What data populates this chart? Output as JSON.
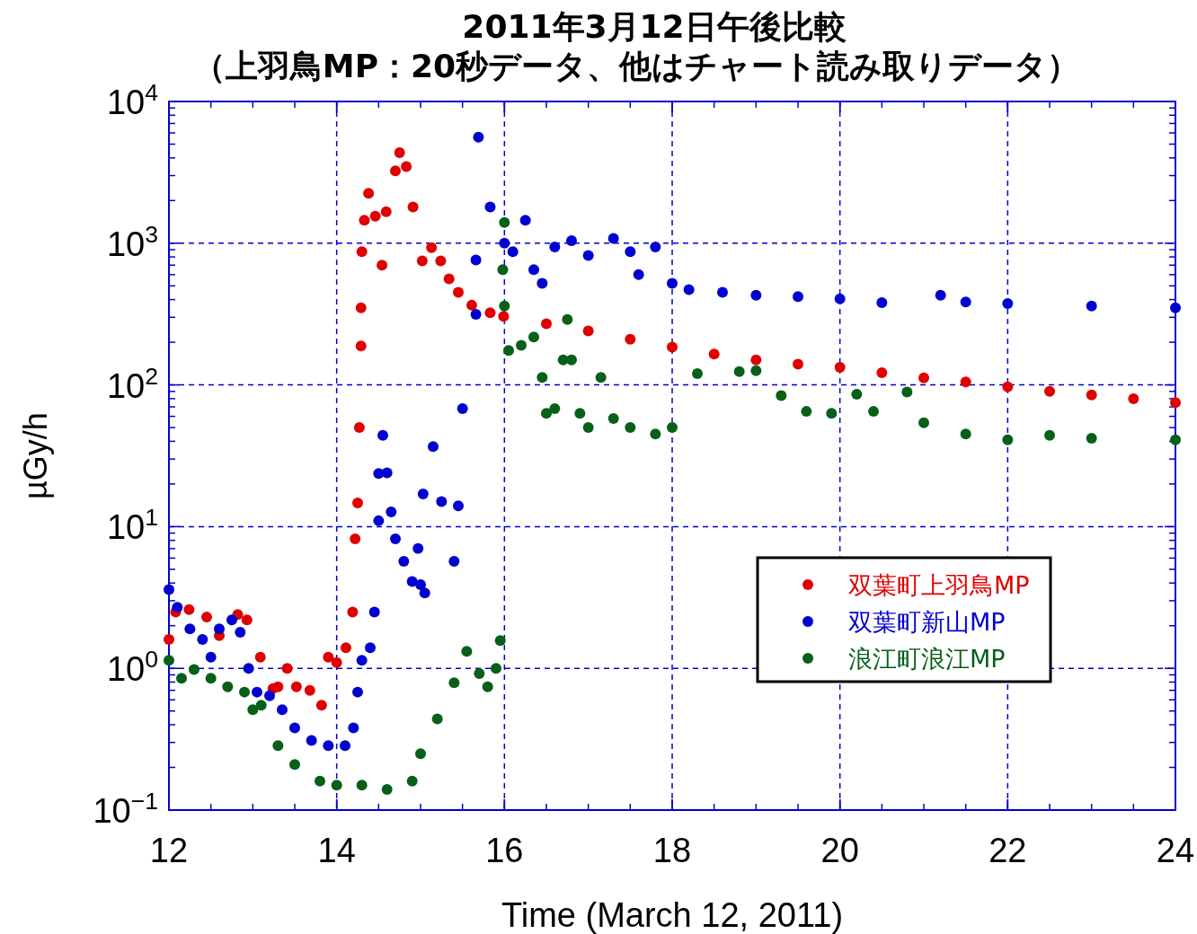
{
  "chart_data": {
    "type": "scatter",
    "title": "2011年3月12日午後比較",
    "subtitle": "（上羽鳥MP：20秒データ、他はチャート読み取りデータ）",
    "xlabel": "Time (March 12, 2011)",
    "ylabel": "µGy/h",
    "log": "y",
    "grid": true,
    "legend": "bottom right",
    "marker": "circle",
    "xlim": [
      12,
      24
    ],
    "ylim": [
      0.1,
      10000
    ],
    "xticks": [
      12,
      14,
      16,
      18,
      20,
      22,
      24
    ],
    "yticks": [
      {
        "value": 0.1,
        "label": "10$^{−1}$"
      },
      {
        "value": 1,
        "label": "10$^{0}$"
      },
      {
        "value": 10,
        "label": "10$^{1}$"
      },
      {
        "value": 100,
        "label": "10$^{2}$"
      },
      {
        "value": 1000,
        "label": "10$^{3}$"
      },
      {
        "value": 10000,
        "label": "10$^{4}$"
      }
    ],
    "series": [
      {
        "name": "双葉町上羽鳥MP",
        "color": "#e00000",
        "x": [
          12.0,
          12.08,
          12.24,
          12.45,
          12.6,
          12.82,
          12.93,
          13.09,
          13.24,
          13.3,
          13.41,
          13.52,
          13.68,
          13.82,
          13.9,
          14.0,
          14.11,
          14.19,
          14.22,
          14.25,
          14.27,
          14.29,
          14.29,
          14.3,
          14.33,
          14.38,
          14.46,
          14.54,
          14.59,
          14.7,
          14.75,
          14.83,
          14.91,
          15.02,
          15.13,
          15.24,
          15.34,
          15.45,
          15.61,
          15.83,
          15.99,
          16.5,
          17,
          17.5,
          18,
          18.5,
          19,
          19.5,
          20,
          20.5,
          21,
          21.5,
          22,
          22.5,
          23,
          23.5,
          24
        ],
        "values": [
          1.6,
          2.5,
          2.6,
          2.3,
          1.7,
          2.4,
          2.2,
          1.2,
          0.72,
          0.74,
          1.0,
          0.74,
          0.7,
          0.55,
          1.2,
          1.1,
          1.4,
          2.5,
          8.2,
          14.7,
          50,
          188,
          350,
          870,
          1450,
          2250,
          1550,
          700,
          1670,
          3240,
          4350,
          3470,
          1800,
          750,
          930,
          750,
          560,
          450,
          365,
          323,
          305,
          270,
          240,
          210,
          185,
          165,
          150,
          140,
          133,
          122,
          112,
          105,
          97,
          90,
          85,
          80,
          75
        ]
      },
      {
        "name": "双葉町新山MP",
        "color": "#0000d0",
        "x": [
          12.0,
          12.1,
          12.25,
          12.4,
          12.5,
          12.6,
          12.75,
          12.85,
          12.95,
          13.05,
          13.2,
          13.35,
          13.5,
          13.7,
          13.9,
          14.1,
          14.2,
          14.25,
          14.3,
          14.4,
          14.45,
          14.5,
          14.5,
          14.55,
          14.6,
          14.65,
          14.7,
          14.8,
          14.9,
          15.0,
          15.05,
          14.97,
          15.03,
          15.15,
          15.25,
          15.4,
          15.45,
          15.5,
          15.66,
          15.66,
          15.69,
          15.83,
          16.0,
          16.1,
          16.25,
          16.35,
          16.45,
          16.6,
          16.8,
          17.0,
          17.3,
          17.5,
          17.6,
          17.8,
          18.0,
          18.2,
          18.6,
          19.0,
          19.5,
          20.0,
          20.5,
          21.2,
          21.5,
          22.0,
          23.0,
          24.0
        ],
        "values": [
          3.6,
          2.7,
          1.9,
          1.6,
          1.2,
          1.9,
          2.2,
          1.8,
          1.0,
          0.68,
          0.64,
          0.51,
          0.38,
          0.31,
          0.285,
          0.285,
          0.38,
          0.68,
          1.14,
          1.4,
          2.5,
          11,
          23.7,
          44,
          24,
          12.7,
          8.2,
          5.7,
          4.1,
          3.9,
          3.4,
          7,
          17,
          36.7,
          15,
          5.7,
          14,
          68,
          315,
          760,
          5600,
          1800,
          1000,
          870,
          1450,
          650,
          520,
          940,
          1040,
          820,
          1080,
          870,
          600,
          940,
          520,
          470,
          450,
          430,
          420,
          405,
          380,
          430,
          385,
          375,
          360,
          350
        ]
      },
      {
        "name": "浪江町浪江MP",
        "color": "#076018",
        "x": [
          12.0,
          12.15,
          12.3,
          12.5,
          12.7,
          12.9,
          13.0,
          13.1,
          13.3,
          13.5,
          13.8,
          14.0,
          14.3,
          14.6,
          14.9,
          15.0,
          15.2,
          15.4,
          15.55,
          15.7,
          15.8,
          15.9,
          15.95,
          16.0,
          15.98,
          16.0,
          16.05,
          16.2,
          16.35,
          16.45,
          16.5,
          16.6,
          16.7,
          16.75,
          16.8,
          16.9,
          17.0,
          17.15,
          17.3,
          17.5,
          17.8,
          18.0,
          18.3,
          18.8,
          19.0,
          19.3,
          19.6,
          19.9,
          20.2,
          20.4,
          20.8,
          21.0,
          21.5,
          22.0,
          22.5,
          23.0,
          24.0
        ],
        "values": [
          1.14,
          0.85,
          0.98,
          0.85,
          0.74,
          0.68,
          0.51,
          0.55,
          0.285,
          0.21,
          0.16,
          0.15,
          0.15,
          0.14,
          0.16,
          0.25,
          0.44,
          0.79,
          1.32,
          0.92,
          0.74,
          1.0,
          1.57,
          1400,
          650,
          360,
          175,
          190,
          218,
          113,
          63,
          68,
          150,
          290,
          150,
          63,
          50,
          113,
          58,
          50,
          45,
          50,
          120,
          124,
          126,
          84,
          65,
          63,
          86,
          65,
          89,
          54,
          45,
          41,
          44,
          42,
          41
        ]
      }
    ]
  }
}
